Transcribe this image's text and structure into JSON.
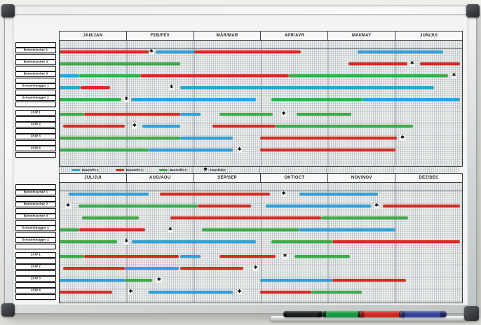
{
  "colors": {
    "blue": "#2ba3dc",
    "red": "#d92c20",
    "green": "#3aae47"
  },
  "legend": {
    "star_glyph": "✱",
    "items": [
      {
        "key": "b",
        "label": "Baustelle 1"
      },
      {
        "key": "r",
        "label": "Baustelle 2"
      },
      {
        "key": "g",
        "label": "Baustelle 3"
      },
      {
        "key": "star",
        "label": "Inspektion"
      }
    ]
  },
  "chart_data": {
    "type": "bar",
    "variant": "annual-gantt-planner-whiteboard",
    "x_unit": "percent of half-year span (6 month columns per table)",
    "series_color_map": {
      "b": "Baustelle 1 (blue)",
      "r": "Baustelle 2 (red)",
      "g": "Baustelle 3 (green)"
    },
    "marker_meaning": "star = Inspektion",
    "halves": [
      {
        "name": "first-half",
        "months": [
          "JAN/JAN",
          "FEB/FEV",
          "MÄR/MAR",
          "APR/AVR",
          "MAI/MAY",
          "JUN/JUI"
        ],
        "rows": [
          {
            "label": "Betonmischer 1",
            "bars": [
              [
                "r",
                0,
                22.3
              ],
              [
                "b",
                23.8,
                33.4
              ],
              [
                "r",
                33.4,
                60
              ],
              [
                "b",
                74,
                95.3
              ]
            ],
            "stars": [
              22.8
            ]
          },
          {
            "label": "Betonmischer 2",
            "bars": [
              [
                "g",
                0,
                30
              ],
              [
                "r",
                71.8,
                86.4
              ],
              [
                "r",
                89.6,
                99.5
              ]
            ],
            "stars": [
              87.6
            ]
          },
          {
            "label": "Betonmischer 3",
            "bars": [
              [
                "b",
                0,
                4.9
              ],
              [
                "g",
                4.9,
                20
              ],
              [
                "r",
                20,
                57
              ],
              [
                "g",
                57,
                96.5
              ]
            ],
            "stars": [
              98
            ]
          },
          {
            "label": "Schaufelbagger 1",
            "bars": [
              [
                "b",
                0,
                5.2
              ],
              [
                "r",
                5.2,
                12.5
              ],
              [
                "b",
                29.9,
                93
              ]
            ],
            "stars": [
              27.8
            ]
          },
          {
            "label": "Schaufelbagger 2",
            "bars": [
              [
                "g",
                0,
                15.3
              ],
              [
                "b",
                17.8,
                48.7
              ],
              [
                "g",
                52.7,
                75.3
              ],
              [
                "b",
                75.3,
                99.5
              ]
            ],
            "stars": [
              16.6
            ]
          },
          {
            "label": "LKW 1",
            "bars": [
              [
                "g",
                0,
                6.1
              ],
              [
                "r",
                6.1,
                29.9
              ],
              [
                "b",
                29.9,
                35.1
              ],
              [
                "g",
                39.7,
                53
              ],
              [
                "g",
                58.8,
                72.5
              ]
            ],
            "stars": [
              55.7
            ]
          },
          {
            "label": "LKW 2",
            "bars": [
              [
                "r",
                0.9,
                16.2
              ],
              [
                "b",
                20.5,
                29.9
              ],
              [
                "r",
                37.9,
                53.6
              ],
              [
                "g",
                53.6,
                87.8
              ]
            ],
            "stars": [
              18.6
            ]
          },
          {
            "label": "LKW 3",
            "bars": [
              [
                "g",
                0,
                29.9
              ],
              [
                "b",
                29.9,
                43
              ],
              [
                "r",
                49.9,
                83.8
              ]
            ],
            "stars": [
              85.2
            ]
          },
          {
            "label": "LKW 4",
            "bars": [
              [
                "g",
                0,
                22.1
              ],
              [
                "b",
                22.1,
                43
              ],
              [
                "r",
                49.9,
                83.5
              ]
            ],
            "stars": [
              44.7
            ]
          }
        ]
      },
      {
        "name": "second-half",
        "months": [
          "JUL/JUI",
          "AUG/AOU",
          "SEP/SEP",
          "OKT/OCT",
          "NOV/NOV",
          "DEZ/DEC"
        ],
        "rows": [
          {
            "label": "Betonmischer 1",
            "bars": [
              [
                "b",
                2.3,
                22.1
              ],
              [
                "r",
                24.9,
                52.2
              ],
              [
                "b",
                59.5,
                79.1
              ]
            ],
            "stars": [
              55.7
            ]
          },
          {
            "label": "Betonmischer 2",
            "bars": [
              [
                "g",
                4.7,
                34.4
              ],
              [
                "r",
                34.4,
                47.5
              ],
              [
                "b",
                51.3,
                77.4
              ],
              [
                "r",
                80.3,
                99.5
              ]
            ],
            "stars": [
              2.1,
              78.8
            ]
          },
          {
            "label": "Betonmischer 3",
            "bars": [
              [
                "g",
                5.6,
                19.7
              ],
              [
                "r",
                27.5,
                64.9
              ],
              [
                "g",
                64.9,
                86.6
              ]
            ],
            "stars": []
          },
          {
            "label": "Schaufelbagger 1",
            "bars": [
              [
                "g",
                0,
                4.9
              ],
              [
                "r",
                4.9,
                21.2
              ],
              [
                "g",
                35.3,
                59.5
              ],
              [
                "b",
                59.5,
                83.5
              ]
            ],
            "stars": [
              27.5
            ]
          },
          {
            "label": "Schaufelbagger 2",
            "bars": [
              [
                "g",
                0,
                14.3
              ],
              [
                "b",
                17.9,
                48.7
              ],
              [
                "g",
                52.7,
                67.8
              ],
              [
                "r",
                67.8,
                99.5
              ]
            ],
            "stars": [
              16.6
            ]
          },
          {
            "label": "LKW 1",
            "bars": [
              [
                "g",
                0,
                6.1
              ],
              [
                "r",
                6.1,
                29.6
              ],
              [
                "b",
                29.9,
                35.1
              ],
              [
                "r",
                39.7,
                53.6
              ],
              [
                "g",
                58.3,
                72.2
              ]
            ],
            "stars": [
              56
            ]
          },
          {
            "label": "LKW 2",
            "bars": [
              [
                "r",
                0.9,
                16.2
              ],
              [
                "b",
                16.2,
                29.6
              ],
              [
                "r",
                29.9,
                45.6
              ]
            ],
            "stars": [
              48.7
            ]
          },
          {
            "label": "LKW 3",
            "bars": [
              [
                "b",
                0,
                16.2
              ],
              [
                "g",
                16.2,
                23
              ],
              [
                "b",
                49.9,
                67.8
              ],
              [
                "r",
                67.8,
                86.1
              ]
            ],
            "stars": [
              24.7
            ]
          },
          {
            "label": "LKW 4",
            "bars": [
              [
                "r",
                0,
                13
              ],
              [
                "b",
                22.1,
                43
              ],
              [
                "r",
                49.9,
                62.6
              ],
              [
                "g",
                62.6,
                75.1
              ]
            ],
            "stars": [
              17.7,
              44.7
            ]
          }
        ]
      }
    ]
  },
  "tray": {
    "pens": [
      {
        "name": "black-marker",
        "body": "#1d1e20",
        "cap": "#0b0b0c"
      },
      {
        "name": "green-marker",
        "body": "#179a3f",
        "cap": "#0d2a14"
      },
      {
        "name": "red-marker",
        "body": "#d02a1e",
        "cap": "#7d150f"
      },
      {
        "name": "blue-marker",
        "body": "#35439b",
        "cap": "#1d2560"
      }
    ]
  }
}
